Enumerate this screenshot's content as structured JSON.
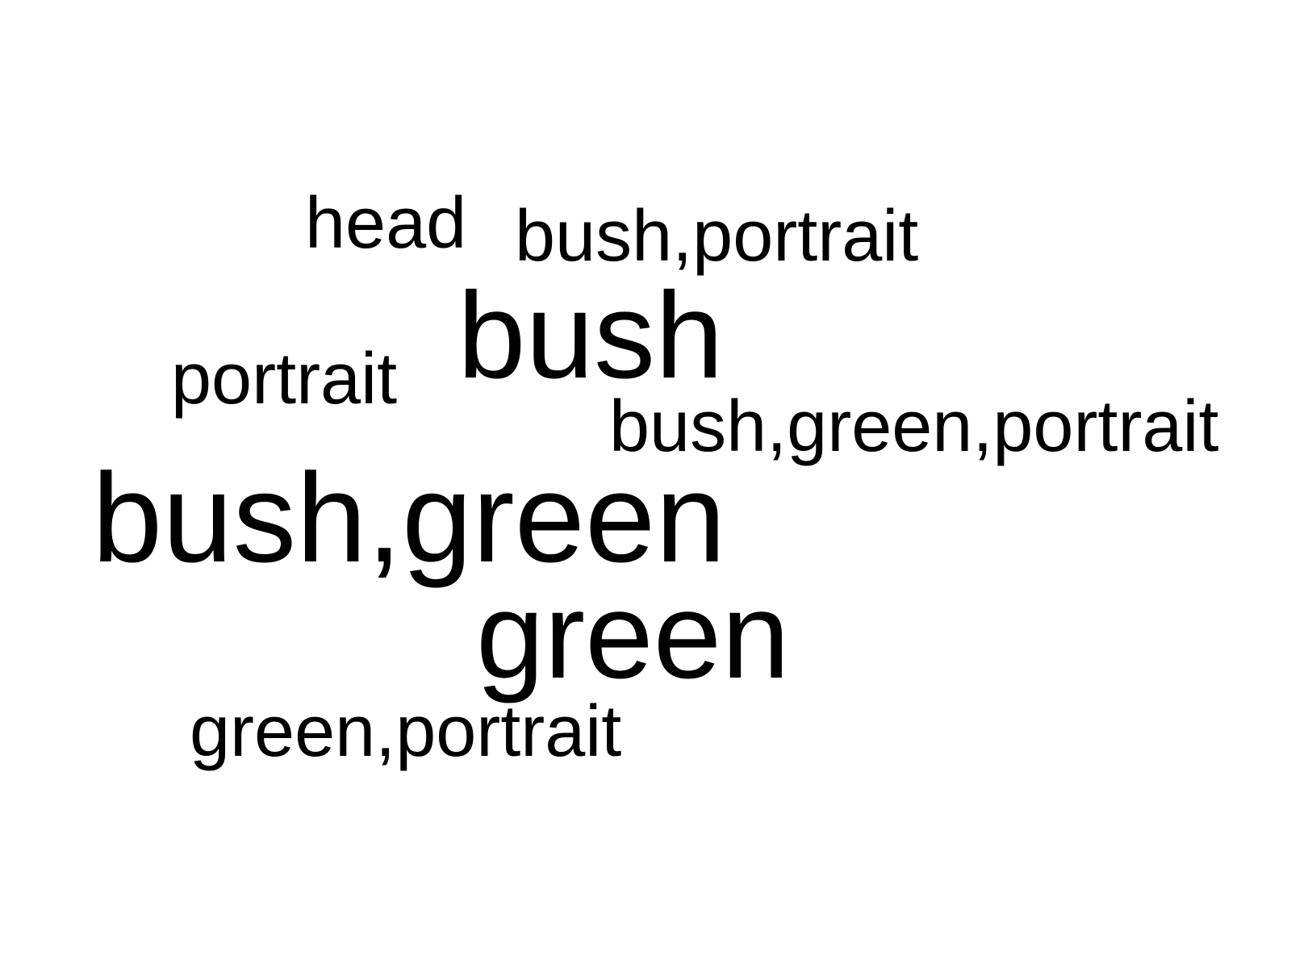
{
  "words": [
    {
      "text": "head"
    },
    {
      "text": "bush,portrait"
    },
    {
      "text": "bush"
    },
    {
      "text": "portrait"
    },
    {
      "text": "bush,green,portrait"
    },
    {
      "text": "bush,green"
    },
    {
      "text": "green"
    },
    {
      "text": "green,portrait"
    }
  ],
  "colors": {
    "background": "#ffffff",
    "text": "#000000"
  }
}
